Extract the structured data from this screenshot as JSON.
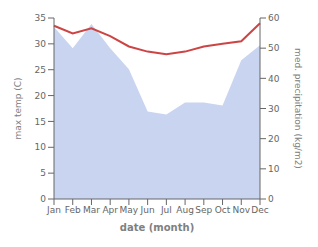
{
  "chart_data": {
    "type": "line",
    "xlabel": "date (month)",
    "ylabel": "max temp (C)",
    "y2label": "med. precipitation (kg/m2)",
    "categories": [
      "Jan",
      "Feb",
      "Mar",
      "Apr",
      "May",
      "Jun",
      "Jul",
      "Aug",
      "Sep",
      "Oct",
      "Nov",
      "Dec"
    ],
    "series": [
      {
        "type": "area",
        "axis": "y2",
        "color": "#c8d4f0",
        "values": [
          57,
          50,
          58,
          50,
          43,
          29,
          28,
          32,
          32,
          31,
          46,
          51
        ]
      },
      {
        "type": "line",
        "color": "#cc4444",
        "values": [
          33.5,
          32.0,
          33.0,
          31.5,
          29.5,
          28.5,
          28.0,
          28.5,
          29.5,
          30.0,
          30.5,
          34.0
        ]
      }
    ],
    "ylim": [
      0,
      35
    ],
    "yticks": [
      0,
      5,
      10,
      15,
      20,
      25,
      30,
      35
    ],
    "y2lim": [
      0,
      60
    ],
    "y2ticks": [
      0,
      10,
      20,
      30,
      40,
      50,
      60
    ]
  }
}
